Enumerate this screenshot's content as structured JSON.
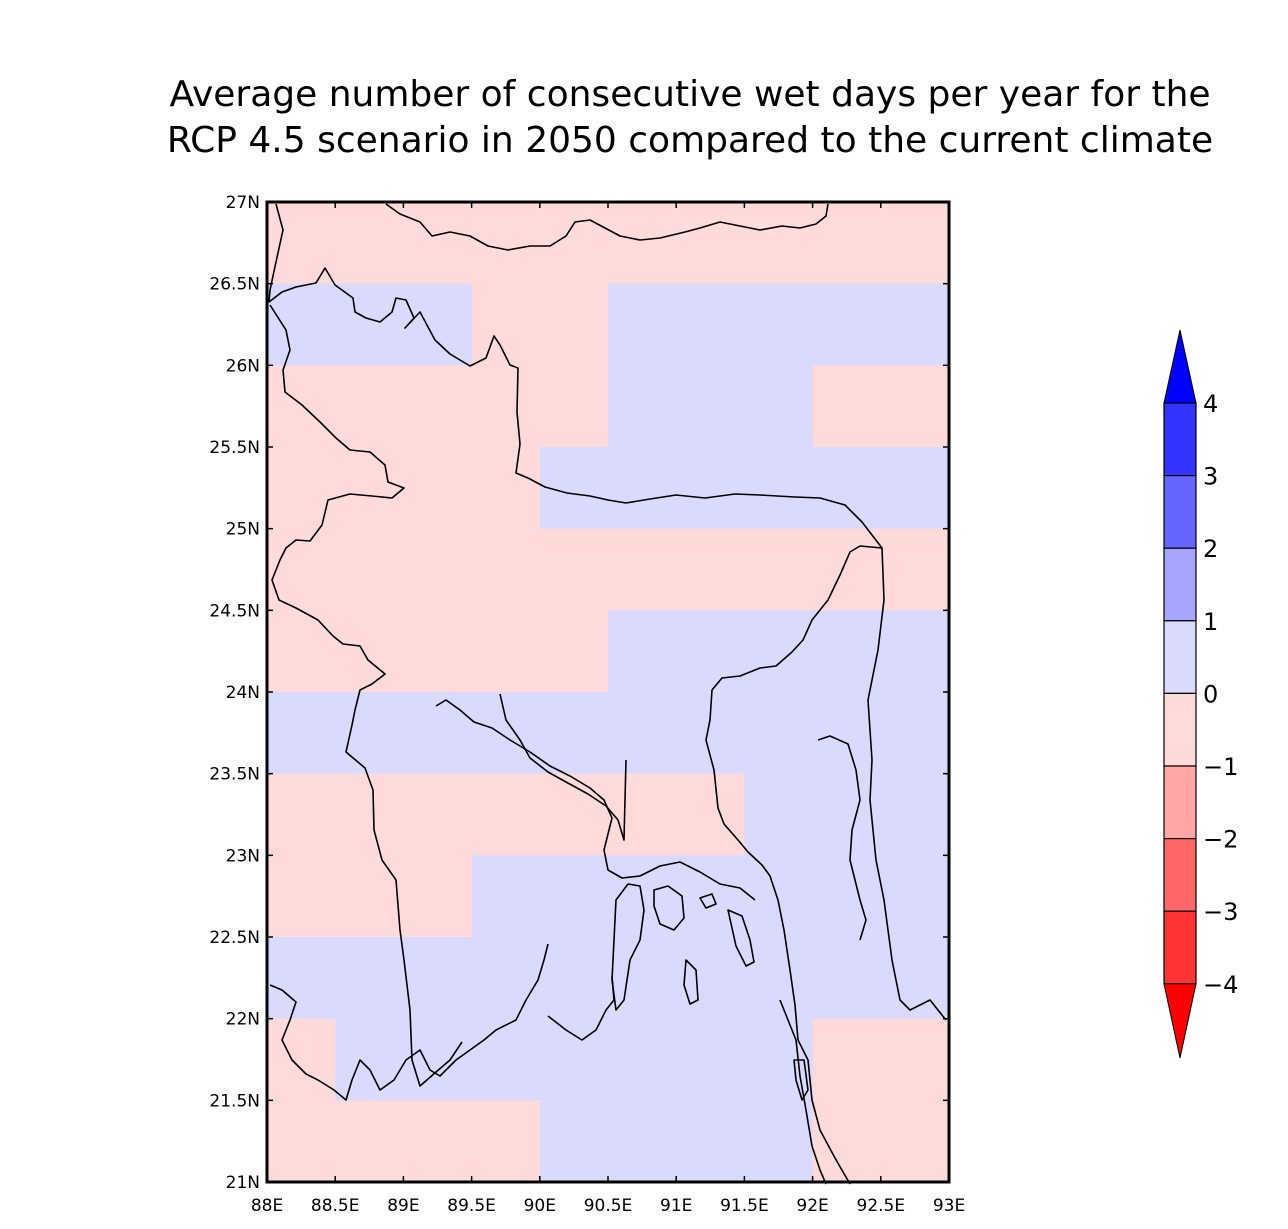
{
  "title_lines": [
    "Average number of consecutive wet days per year for the",
    "RCP 4.5 scenario in 2050 compared to the current climate"
  ],
  "chart_data": {
    "type": "heatmap",
    "x_ticks": [
      "88E",
      "88.5E",
      "89E",
      "89.5E",
      "90E",
      "90.5E",
      "91E",
      "91.5E",
      "92E",
      "92.5E",
      "93E"
    ],
    "y_ticks": [
      "21N",
      "21.5N",
      "22N",
      "22.5N",
      "23N",
      "23.5N",
      "24N",
      "24.5N",
      "25N",
      "25.5N",
      "26N",
      "26.5N",
      "27N"
    ],
    "xlim": [
      88,
      93
    ],
    "ylim": [
      21,
      27
    ],
    "cell_size_deg": 0.5,
    "grid_class_rows_north_to_south": [
      "pppppppppp",
      "bbbppbbbbb",
      "pppppbbbpp",
      "ppppbbbbbb",
      "pppppppppp",
      "pppppbbbbb",
      "bbbbbbbbbb",
      "pppppppbbb",
      "pppbbbbbbb",
      "bbbbbbbbbb",
      "pbbbbbbbpp",
      "ppppbbbbpp"
    ],
    "legend_class_values": {
      "b": "0 to 1",
      "p": "-1 to 0"
    },
    "colorbar": {
      "labels": [
        "4",
        "3",
        "2",
        "1",
        "0",
        "−1",
        "−2",
        "−3",
        "−4"
      ],
      "bands": [
        {
          "range": "3 to 4",
          "color": "#3333ff"
        },
        {
          "range": "2 to 3",
          "color": "#6666ff"
        },
        {
          "range": "1 to 2",
          "color": "#a6a6ff"
        },
        {
          "range": "0 to 1",
          "color": "#dadaff"
        },
        {
          "range": "-1 to 0",
          "color": "#ffdada"
        },
        {
          "range": "-2 to -1",
          "color": "#ffa6a6"
        },
        {
          "range": "-3 to -2",
          "color": "#ff6666"
        },
        {
          "range": "-4 to -3",
          "color": "#ff3333"
        }
      ],
      "top_arrow_color": "#0000ff",
      "bottom_arrow_color": "#ff0000"
    }
  }
}
